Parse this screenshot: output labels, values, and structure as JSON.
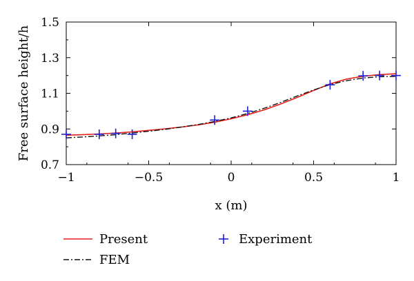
{
  "chart_data": {
    "type": "line",
    "xlabel": "x (m)",
    "ylabel": "Free surface height/h",
    "xlim": [
      -1,
      1
    ],
    "ylim": [
      0.7,
      1.5
    ],
    "x_ticks": [
      -1,
      -0.5,
      0,
      0.5,
      1
    ],
    "x_tick_labels": [
      "−1",
      "−0.5",
      "0",
      "0.5",
      "1"
    ],
    "y_ticks": [
      0.7,
      0.9,
      1.1,
      1.3,
      1.5
    ],
    "y_tick_labels": [
      "0.7",
      "0.9",
      "1.1",
      "1.3",
      "1.5"
    ],
    "grid": false,
    "legend_position": "bottom",
    "series": [
      {
        "name": "Present",
        "style": "line",
        "color": "#e8201c",
        "x": [
          -1,
          -0.9,
          -0.8,
          -0.7,
          -0.6,
          -0.5,
          -0.4,
          -0.3,
          -0.2,
          -0.1,
          0,
          0.1,
          0.2,
          0.3,
          0.4,
          0.5,
          0.6,
          0.7,
          0.8,
          0.9,
          1
        ],
        "y": [
          0.865,
          0.868,
          0.872,
          0.877,
          0.884,
          0.892,
          0.901,
          0.911,
          0.923,
          0.938,
          0.957,
          0.98,
          1.007,
          1.04,
          1.077,
          1.116,
          1.153,
          1.18,
          1.196,
          1.205,
          1.21
        ]
      },
      {
        "name": "FEM",
        "style": "dashdot",
        "color": "#111111",
        "x": [
          -1,
          -0.9,
          -0.8,
          -0.7,
          -0.6,
          -0.5,
          -0.4,
          -0.3,
          -0.2,
          -0.1,
          0,
          0.1,
          0.2,
          0.3,
          0.4,
          0.5,
          0.6,
          0.7,
          0.8,
          0.9,
          1
        ],
        "y": [
          0.85,
          0.855,
          0.861,
          0.868,
          0.877,
          0.887,
          0.898,
          0.911,
          0.925,
          0.942,
          0.962,
          0.987,
          1.016,
          1.049,
          1.085,
          1.119,
          1.149,
          1.171,
          1.186,
          1.193,
          1.195
        ]
      },
      {
        "name": "Experiment",
        "style": "marker-plus",
        "color": "#1c1cd6",
        "x": [
          -1,
          -0.8,
          -0.7,
          -0.6,
          -0.1,
          0.1,
          0.6,
          0.8,
          0.9,
          1
        ],
        "y": [
          0.87,
          0.87,
          0.875,
          0.87,
          0.95,
          1.0,
          1.148,
          1.198,
          1.2,
          1.2
        ]
      }
    ]
  }
}
